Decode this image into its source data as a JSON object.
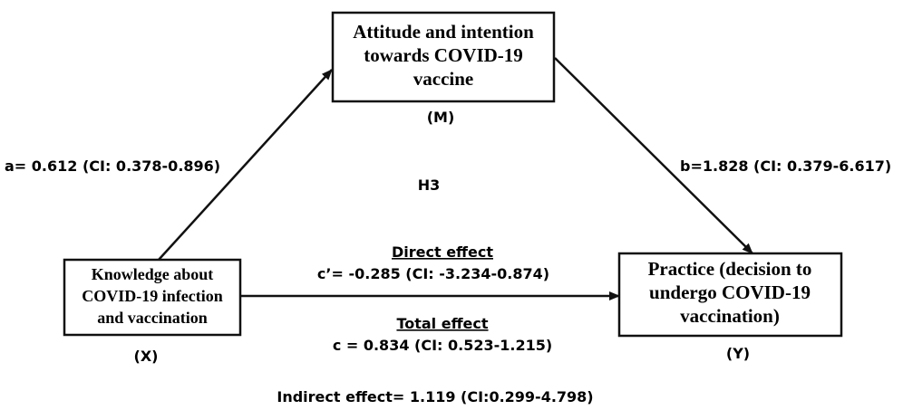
{
  "nodes": [
    {
      "label": [
        "Attitude and intention",
        "towards COVID-19",
        "vaccine"
      ],
      "tag": "(M)"
    },
    {
      "label": [
        "Knowledge about",
        "COVID-19 infection",
        "and vaccination"
      ],
      "tag": "(X)"
    },
    {
      "label": [
        "Practice (decision to",
        "undergo COVID-19",
        "vaccination)"
      ],
      "tag": "(Y)"
    }
  ],
  "paths": {
    "a": "a= 0.612 (CI: 0.378-0.896)",
    "b": "b=1.828 (CI: 0.379-6.617)",
    "hypothesis": "H3",
    "direct_title": "Direct effect",
    "direct": "c’= -0.285 (CI: -3.234-0.874)",
    "total_title": "Total effect",
    "total": "c = 0.834 (CI: 0.523-1.215)",
    "indirect": "Indirect effect= 1.119  (CI:0.299-4.798)"
  }
}
